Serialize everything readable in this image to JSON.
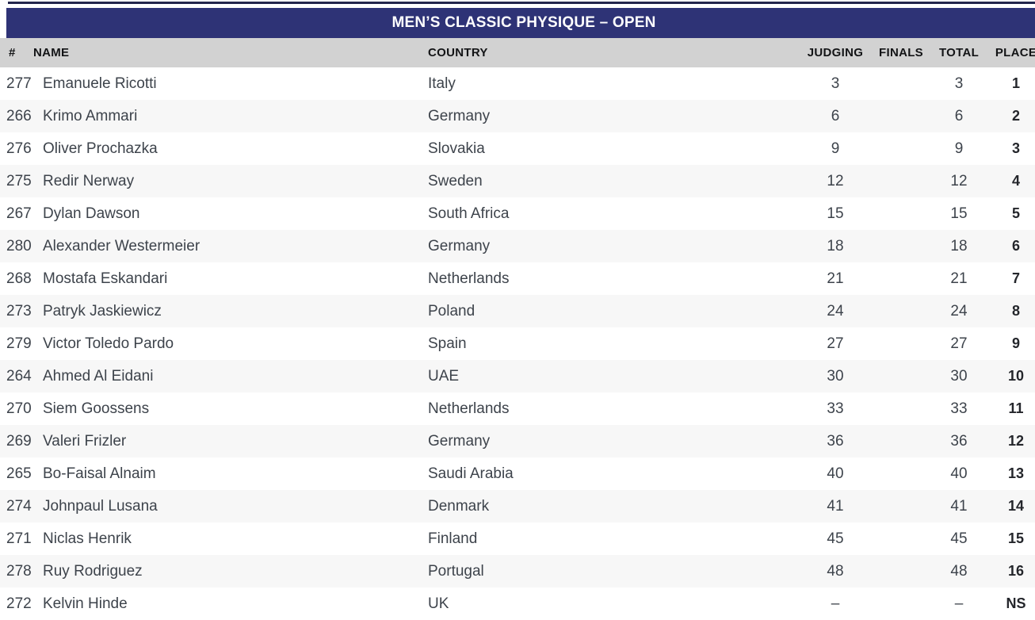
{
  "colors": {
    "top_line": "#23264d",
    "title_bg": "#2e3376",
    "title_text": "#ffffff",
    "header_bg": "#d2d2d2",
    "header_text": "#131416",
    "row_text": "#3d434b",
    "place_text": "#24262b",
    "row_alt": "#f7f7f7"
  },
  "table": {
    "title": "MEN’S CLASSIC PHYSIQUE – OPEN",
    "columns": [
      "#",
      "NAME",
      "COUNTRY",
      "JUDGING",
      "FINALS",
      "TOTAL",
      "PLACE"
    ],
    "rows": [
      {
        "num": "277",
        "name": "Emanuele Ricotti",
        "country": "Italy",
        "judging": "3",
        "finals": "",
        "total": "3",
        "place": "1"
      },
      {
        "num": "266",
        "name": "Krimo Ammari",
        "country": "Germany",
        "judging": "6",
        "finals": "",
        "total": "6",
        "place": "2"
      },
      {
        "num": "276",
        "name": "Oliver Prochazka",
        "country": "Slovakia",
        "judging": "9",
        "finals": "",
        "total": "9",
        "place": "3"
      },
      {
        "num": "275",
        "name": "Redir Nerway",
        "country": "Sweden",
        "judging": "12",
        "finals": "",
        "total": "12",
        "place": "4"
      },
      {
        "num": "267",
        "name": "Dylan Dawson",
        "country": "South Africa",
        "judging": "15",
        "finals": "",
        "total": "15",
        "place": "5"
      },
      {
        "num": "280",
        "name": "Alexander Westermeier",
        "country": "Germany",
        "judging": "18",
        "finals": "",
        "total": "18",
        "place": "6"
      },
      {
        "num": "268",
        "name": "Mostafa Eskandari",
        "country": "Netherlands",
        "judging": "21",
        "finals": "",
        "total": "21",
        "place": "7"
      },
      {
        "num": "273",
        "name": "Patryk Jaskiewicz",
        "country": "Poland",
        "judging": "24",
        "finals": "",
        "total": "24",
        "place": "8"
      },
      {
        "num": "279",
        "name": "Victor Toledo Pardo",
        "country": "Spain",
        "judging": "27",
        "finals": "",
        "total": "27",
        "place": "9"
      },
      {
        "num": "264",
        "name": "Ahmed Al Eidani",
        "country": "UAE",
        "judging": "30",
        "finals": "",
        "total": "30",
        "place": "10"
      },
      {
        "num": "270",
        "name": "Siem Goossens",
        "country": "Netherlands",
        "judging": "33",
        "finals": "",
        "total": "33",
        "place": "11"
      },
      {
        "num": "269",
        "name": "Valeri Frizler",
        "country": "Germany",
        "judging": "36",
        "finals": "",
        "total": "36",
        "place": "12"
      },
      {
        "num": "265",
        "name": "Bo-Faisal Alnaim",
        "country": "Saudi Arabia",
        "judging": "40",
        "finals": "",
        "total": "40",
        "place": "13"
      },
      {
        "num": "274",
        "name": "Johnpaul Lusana",
        "country": "Denmark",
        "judging": "41",
        "finals": "",
        "total": "41",
        "place": "14"
      },
      {
        "num": "271",
        "name": "Niclas Henrik",
        "country": "Finland",
        "judging": "45",
        "finals": "",
        "total": "45",
        "place": "15"
      },
      {
        "num": "278",
        "name": "Ruy Rodriguez",
        "country": "Portugal",
        "judging": "48",
        "finals": "",
        "total": "48",
        "place": "16"
      },
      {
        "num": "272",
        "name": "Kelvin Hinde",
        "country": "UK",
        "judging": "–",
        "finals": "",
        "total": "–",
        "place": "NS"
      }
    ]
  }
}
